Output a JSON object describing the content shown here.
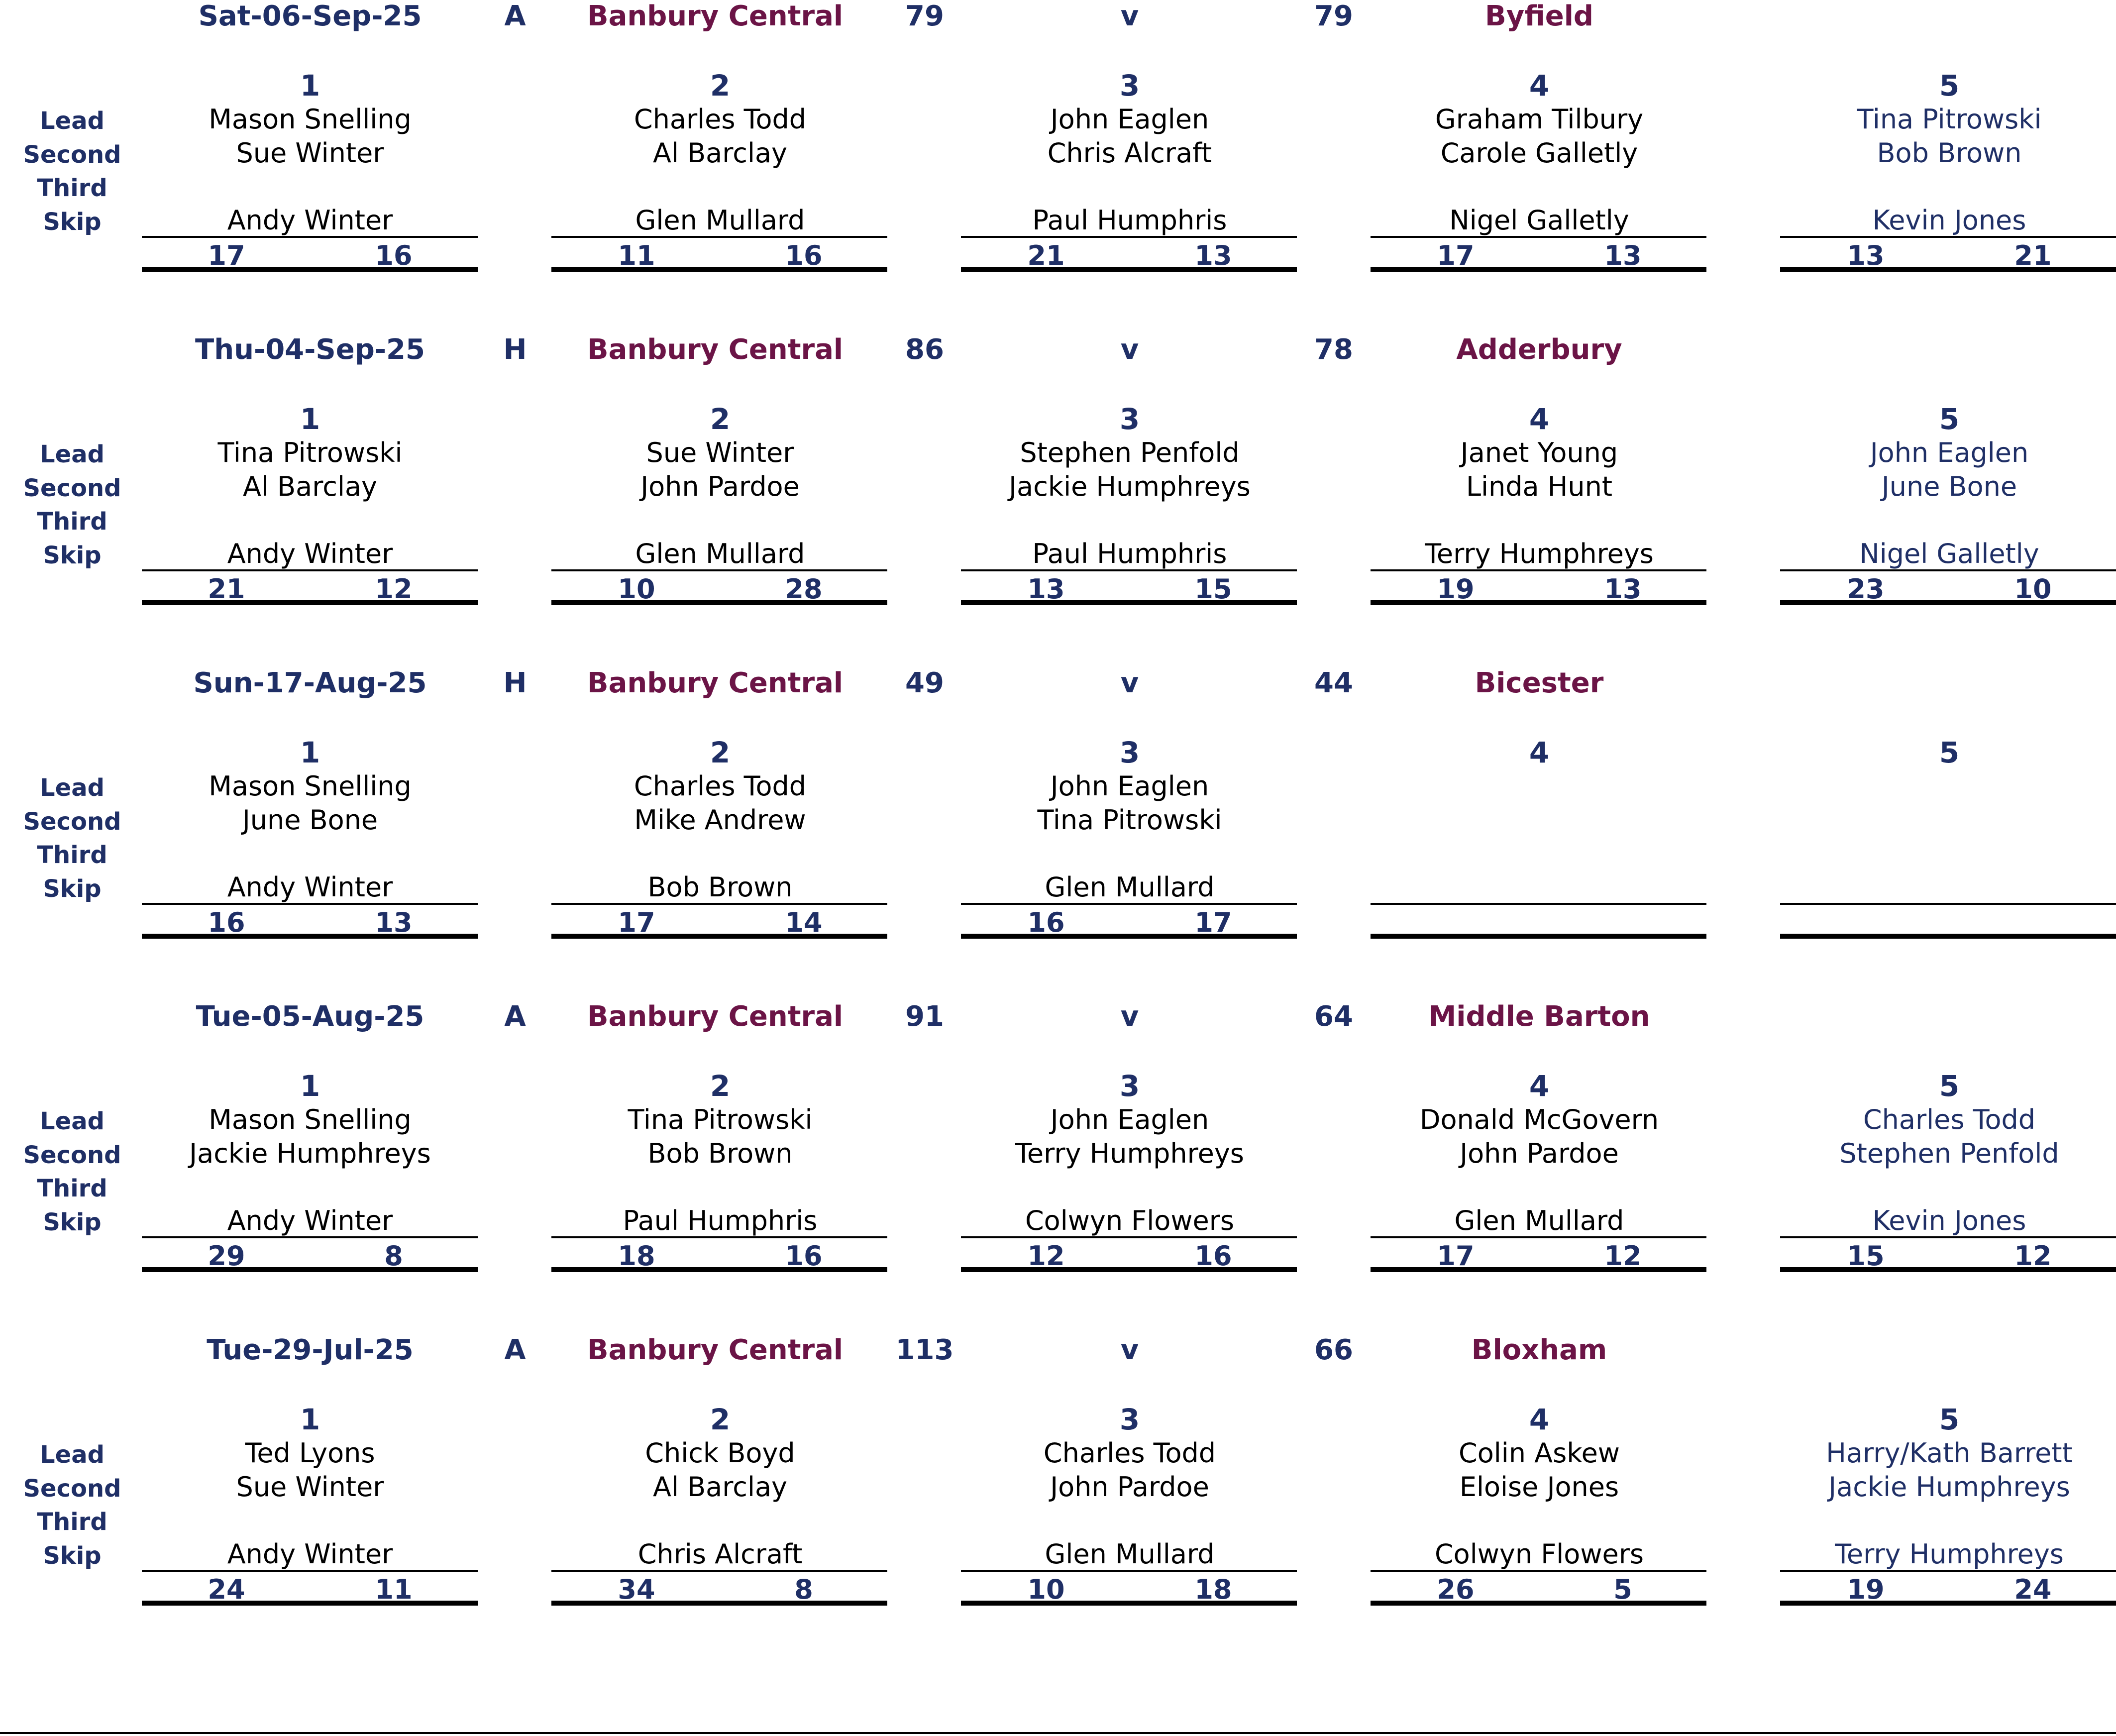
{
  "position_labels": [
    "Lead",
    "Second",
    "Third",
    "Skip"
  ],
  "vs_label": "v",
  "matches": [
    {
      "date": "Sat-06-Sep-25",
      "venue": "A",
      "home_team": "Banbury Central",
      "home_total": "79",
      "away_total": "79",
      "away_team": "Byfield",
      "rinks": [
        {
          "num": "1",
          "lead": "Mason Snelling",
          "second": "Sue Winter",
          "third": "",
          "skip": "Andy Winter",
          "for": "17",
          "against": "16"
        },
        {
          "num": "2",
          "lead": "Charles Todd",
          "second": "Al Barclay",
          "third": "",
          "skip": "Glen Mullard",
          "for": "11",
          "against": "16"
        },
        {
          "num": "3",
          "lead": "John Eaglen",
          "second": "Chris Alcraft",
          "third": "",
          "skip": "Paul Humphris",
          "for": "21",
          "against": "13"
        },
        {
          "num": "4",
          "lead": "Graham Tilbury",
          "second": "Carole Galletly",
          "third": "",
          "skip": "Nigel Galletly",
          "for": "17",
          "against": "13"
        },
        {
          "num": "5",
          "lead": "Tina Pitrowski",
          "second": "Bob Brown",
          "third": "",
          "skip": "Kevin Jones",
          "for": "13",
          "against": "21"
        }
      ]
    },
    {
      "date": "Thu-04-Sep-25",
      "venue": "H",
      "home_team": "Banbury Central",
      "home_total": "86",
      "away_total": "78",
      "away_team": "Adderbury",
      "rinks": [
        {
          "num": "1",
          "lead": "Tina Pitrowski",
          "second": "Al Barclay",
          "third": "",
          "skip": "Andy Winter",
          "for": "21",
          "against": "12"
        },
        {
          "num": "2",
          "lead": "Sue Winter",
          "second": "John Pardoe",
          "third": "",
          "skip": "Glen Mullard",
          "for": "10",
          "against": "28"
        },
        {
          "num": "3",
          "lead": "Stephen Penfold",
          "second": "Jackie Humphreys",
          "third": "",
          "skip": "Paul Humphris",
          "for": "13",
          "against": "15"
        },
        {
          "num": "4",
          "lead": "Janet Young",
          "second": "Linda Hunt",
          "third": "",
          "skip": "Terry Humphreys",
          "for": "19",
          "against": "13"
        },
        {
          "num": "5",
          "lead": "John Eaglen",
          "second": "June Bone",
          "third": "",
          "skip": "Nigel Galletly",
          "for": "23",
          "against": "10"
        }
      ]
    },
    {
      "date": "Sun-17-Aug-25",
      "venue": "H",
      "home_team": "Banbury Central",
      "home_total": "49",
      "away_total": "44",
      "away_team": "Bicester",
      "rinks": [
        {
          "num": "1",
          "lead": "Mason Snelling",
          "second": "June Bone",
          "third": "",
          "skip": "Andy Winter",
          "for": "16",
          "against": "13"
        },
        {
          "num": "2",
          "lead": "Charles Todd",
          "second": "Mike Andrew",
          "third": "",
          "skip": "Bob Brown",
          "for": "17",
          "against": "14"
        },
        {
          "num": "3",
          "lead": "John Eaglen",
          "second": "Tina Pitrowski",
          "third": "",
          "skip": "Glen Mullard",
          "for": "16",
          "against": "17"
        },
        {
          "num": "4",
          "lead": "",
          "second": "",
          "third": "",
          "skip": "",
          "for": "",
          "against": ""
        },
        {
          "num": "5",
          "lead": "",
          "second": "",
          "third": "",
          "skip": "",
          "for": "",
          "against": ""
        }
      ]
    },
    {
      "date": "Tue-05-Aug-25",
      "venue": "A",
      "home_team": "Banbury Central",
      "home_total": "91",
      "away_total": "64",
      "away_team": "Middle Barton",
      "rinks": [
        {
          "num": "1",
          "lead": "Mason Snelling",
          "second": "Jackie Humphreys",
          "third": "",
          "skip": "Andy Winter",
          "for": "29",
          "against": "8"
        },
        {
          "num": "2",
          "lead": "Tina Pitrowski",
          "second": "Bob Brown",
          "third": "",
          "skip": "Paul Humphris",
          "for": "18",
          "against": "16"
        },
        {
          "num": "3",
          "lead": "John Eaglen",
          "second": "Terry Humphreys",
          "third": "",
          "skip": "Colwyn Flowers",
          "for": "12",
          "against": "16"
        },
        {
          "num": "4",
          "lead": "Donald McGovern",
          "second": "John Pardoe",
          "third": "",
          "skip": "Glen Mullard",
          "for": "17",
          "against": "12"
        },
        {
          "num": "5",
          "lead": "Charles Todd",
          "second": "Stephen Penfold",
          "third": "",
          "skip": "Kevin Jones",
          "for": "15",
          "against": "12"
        }
      ]
    },
    {
      "date": "Tue-29-Jul-25",
      "venue": "A",
      "home_team": "Banbury Central",
      "home_total": "113",
      "away_total": "66",
      "away_team": "Bloxham",
      "rinks": [
        {
          "num": "1",
          "lead": "Ted Lyons",
          "second": "Sue Winter",
          "third": "",
          "skip": "Andy Winter",
          "for": "24",
          "against": "11"
        },
        {
          "num": "2",
          "lead": "Chick Boyd",
          "second": "Al Barclay",
          "third": "",
          "skip": "Chris Alcraft",
          "for": "34",
          "against": "8"
        },
        {
          "num": "3",
          "lead": "Charles Todd",
          "second": "John Pardoe",
          "third": "",
          "skip": "Glen Mullard",
          "for": "10",
          "against": "18"
        },
        {
          "num": "4",
          "lead": "Colin Askew",
          "second": "Eloise Jones",
          "third": "",
          "skip": "Colwyn Flowers",
          "for": "26",
          "against": "5"
        },
        {
          "num": "5",
          "lead": "Harry/Kath Barrett",
          "second": "Jackie Humphreys",
          "third": "",
          "skip": "Terry Humphreys",
          "for": "19",
          "against": "24"
        }
      ]
    }
  ]
}
